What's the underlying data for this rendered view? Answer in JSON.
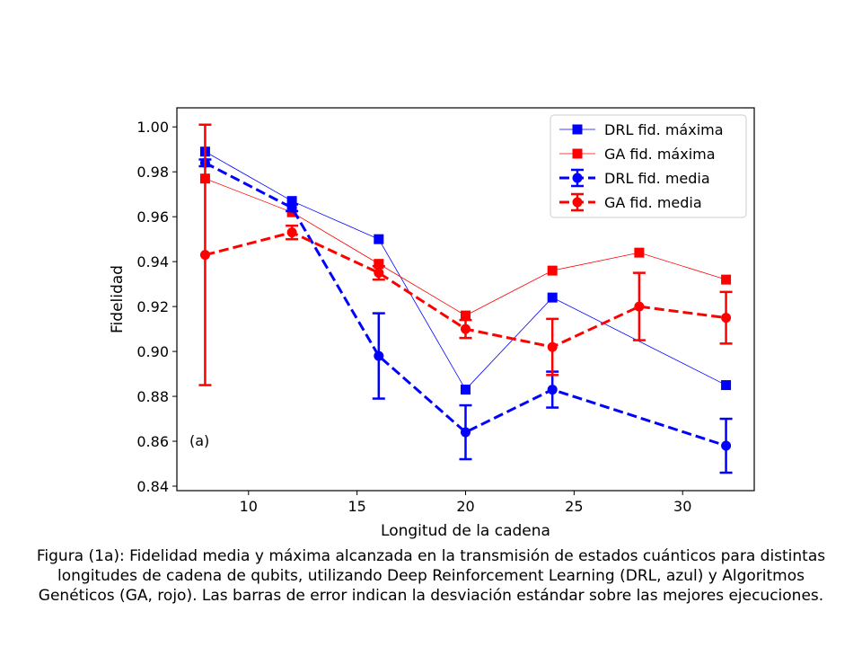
{
  "chart_data": {
    "type": "line",
    "xlabel": "Longitud de la cadena",
    "ylabel": "Fidelidad",
    "xlim": [
      6.7,
      33.3
    ],
    "ylim": [
      0.838,
      1.0085
    ],
    "xticks": [
      10,
      15,
      20,
      25,
      30
    ],
    "xtick_labels": [
      "10",
      "15",
      "20",
      "25",
      "30"
    ],
    "yticks": [
      0.84,
      0.86,
      0.88,
      0.9,
      0.92,
      0.94,
      0.96,
      0.98,
      1.0
    ],
    "ytick_labels": [
      "0.84",
      "0.86",
      "0.88",
      "0.90",
      "0.92",
      "0.94",
      "0.96",
      "0.98",
      "1.00"
    ],
    "grid": false,
    "legend_position": "top-right",
    "annotation": "(a)",
    "series": [
      {
        "name": "DRL fid. máxima",
        "color": "#0000ff",
        "style": "solid-thin",
        "marker": "square",
        "x": [
          8,
          12,
          16,
          20,
          24,
          32
        ],
        "y": [
          0.989,
          0.967,
          0.95,
          0.883,
          0.924,
          0.885
        ]
      },
      {
        "name": "GA fid. máxima",
        "color": "#ff0000",
        "style": "solid-thin",
        "marker": "square",
        "x": [
          8,
          12,
          16,
          20,
          24,
          28,
          32
        ],
        "y": [
          0.977,
          0.962,
          0.939,
          0.916,
          0.936,
          0.944,
          0.932
        ]
      },
      {
        "name": "DRL fid. media",
        "color": "#0000ff",
        "style": "dashed-thick",
        "marker": "circle",
        "x": [
          8,
          12,
          16,
          20,
          24,
          32
        ],
        "y": [
          0.984,
          0.964,
          0.898,
          0.864,
          0.883,
          0.858
        ],
        "err": [
          0.0015,
          0.0015,
          0.019,
          0.012,
          0.008,
          0.012
        ]
      },
      {
        "name": "GA fid. media",
        "color": "#ff0000",
        "style": "dashed-thick",
        "marker": "circle",
        "x": [
          8,
          12,
          16,
          20,
          24,
          28,
          32
        ],
        "y": [
          0.943,
          0.953,
          0.935,
          0.91,
          0.902,
          0.92,
          0.915
        ],
        "err": [
          0.058,
          0.003,
          0.003,
          0.004,
          0.0125,
          0.015,
          0.0115
        ]
      }
    ]
  },
  "caption": {
    "line1": "Figura (1a): Fidelidad media y máxima alcanzada en la transmisión de estados cuánticos para distintas",
    "line2": "longitudes de cadena de qubits, utilizando Deep Reinforcement Learning (DRL, azul) y Algoritmos",
    "line3": "Genéticos (GA, rojo). Las barras de error indican la desviación estándar sobre las mejores ejecuciones."
  }
}
